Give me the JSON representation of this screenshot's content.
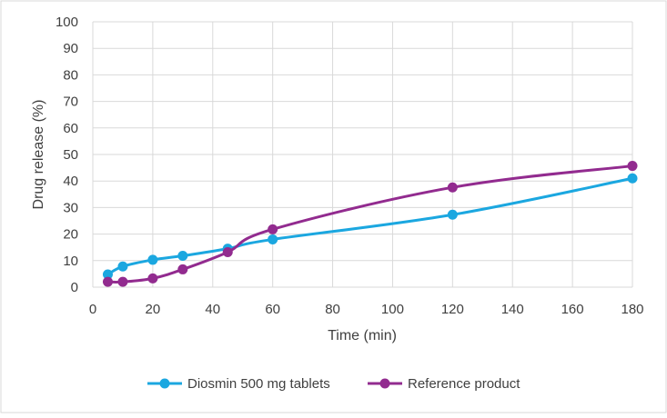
{
  "chart_data": {
    "type": "line",
    "title": "",
    "xlabel": "Time (min)",
    "ylabel": "Drug release  (%)",
    "xlim": [
      0,
      180
    ],
    "ylim": [
      0,
      100
    ],
    "x_ticks": [
      0,
      20,
      40,
      60,
      80,
      100,
      120,
      140,
      160,
      180
    ],
    "y_ticks": [
      0,
      10,
      20,
      30,
      40,
      50,
      60,
      70,
      80,
      90,
      100
    ],
    "grid": true,
    "legend_position": "bottom",
    "series": [
      {
        "name": "Diosmin 500 mg tablets",
        "color": "#1BA7E0",
        "x": [
          5,
          10,
          20,
          30,
          45,
          60,
          120,
          180
        ],
        "y": [
          4.8,
          7.8,
          10.3,
          11.8,
          14.5,
          18.0,
          27.3,
          41.0
        ]
      },
      {
        "name": "Reference product",
        "color": "#922B8F",
        "x": [
          5,
          10,
          20,
          30,
          45,
          60,
          120,
          180
        ],
        "y": [
          2.0,
          2.0,
          3.3,
          6.7,
          13.2,
          21.8,
          37.6,
          45.7
        ]
      }
    ]
  }
}
